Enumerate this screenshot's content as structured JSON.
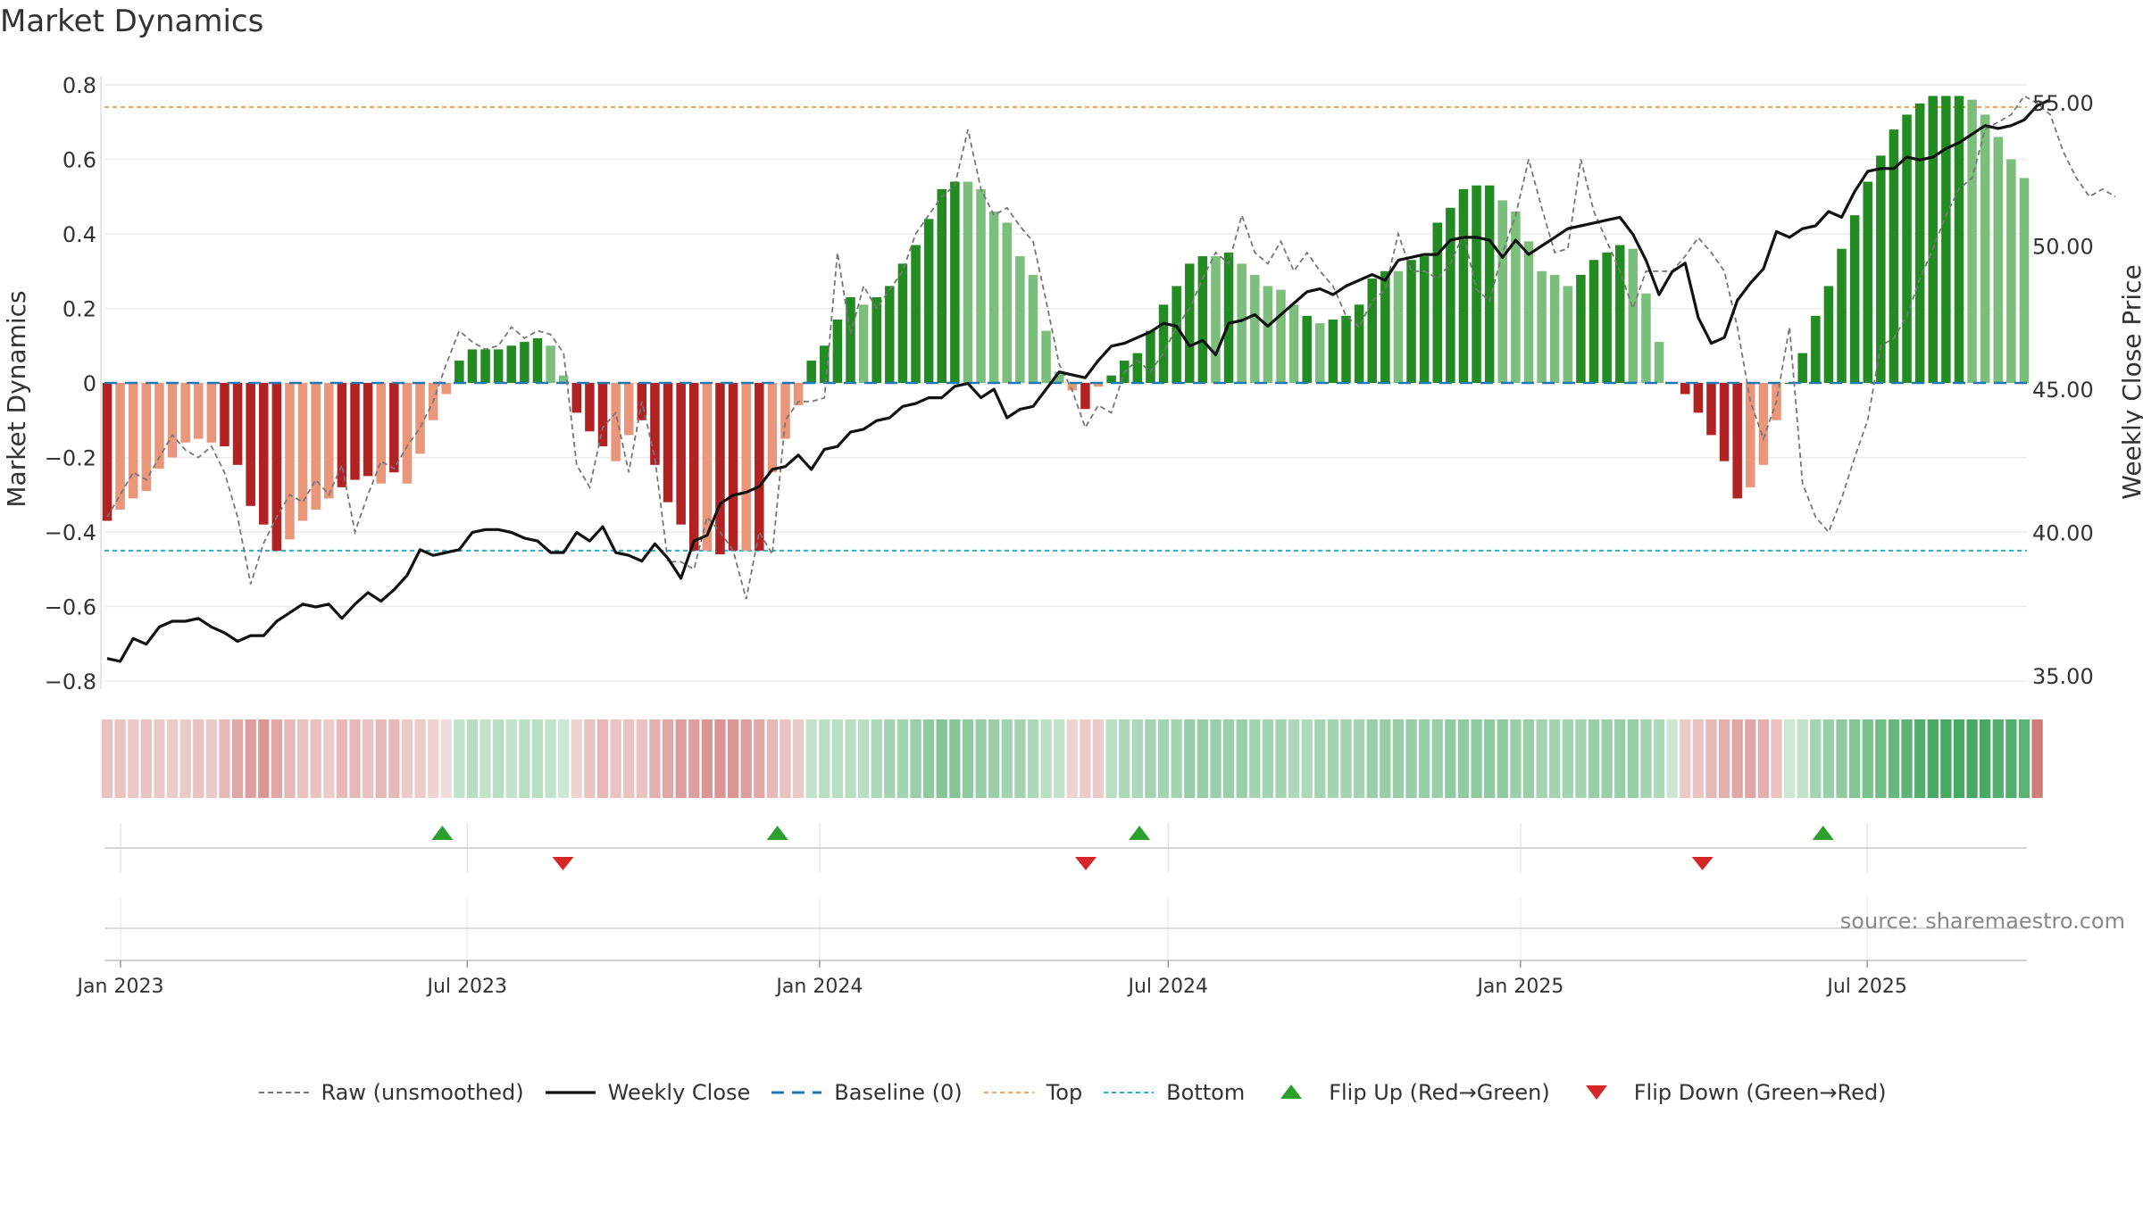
{
  "title": "Market Dynamics",
  "source": "source: sharemaestro.com",
  "chart_data": {
    "type": "bar",
    "title": "Market Dynamics",
    "ylabel": "Market Dynamics",
    "y2label": "Weekly Close Price",
    "ylim": [
      -0.8,
      0.8
    ],
    "y2lim": [
      35,
      55
    ],
    "yticks": [
      "0.8",
      "0.6",
      "0.4",
      "0.2",
      "0",
      "−0.2",
      "−0.4",
      "−0.6",
      "−0.8"
    ],
    "y2ticks": [
      "55.00",
      "50.00",
      "45.00",
      "40.00",
      "35.00"
    ],
    "xticks": [
      {
        "date": "2023-01-01",
        "label": "Jan 2023"
      },
      {
        "date": "2023-07-01",
        "label": "Jul 2023"
      },
      {
        "date": "2024-01-01",
        "label": "Jan 2024"
      },
      {
        "date": "2024-07-01",
        "label": "Jul 2024"
      },
      {
        "date": "2025-01-01",
        "label": "Jan 2025"
      },
      {
        "date": "2025-07-01",
        "label": "Jul 2025"
      }
    ],
    "x_start": "2022-12-25",
    "x_end": "2025-09-21",
    "top_level": 0.74,
    "bottom_level": -0.45,
    "baseline": 0,
    "grid": true,
    "legend_position": "bottom-center",
    "colors": {
      "strong_green": "#228B22",
      "light_green": "#7CBF7C",
      "strong_red": "#B22222",
      "light_red": "#E9967A",
      "raw": "#777777",
      "close": "#111111",
      "baseline": "#1F77B4",
      "top": "#F4A460",
      "bottom": "#20B2CC",
      "flip_up": "#2CA02C",
      "flip_down": "#D62728"
    },
    "series": [
      {
        "name": "Raw (unsmoothed)",
        "values": [
          -0.36,
          -0.3,
          -0.24,
          -0.26,
          -0.2,
          -0.14,
          -0.18,
          -0.2,
          -0.17,
          -0.24,
          -0.36,
          -0.54,
          -0.43,
          -0.36,
          -0.3,
          -0.32,
          -0.26,
          -0.3,
          -0.22,
          -0.4,
          -0.3,
          -0.21,
          -0.23,
          -0.17,
          -0.12,
          -0.05,
          0.05,
          0.14,
          0.11,
          0.09,
          0.1,
          0.15,
          0.12,
          0.14,
          0.13,
          0.08,
          -0.22,
          -0.28,
          -0.12,
          -0.08,
          -0.24,
          -0.05,
          -0.2,
          -0.48,
          -0.48,
          -0.5,
          -0.36,
          -0.4,
          -0.45,
          -0.58,
          -0.4,
          -0.46,
          -0.1,
          -0.05,
          -0.05,
          -0.04,
          0.35,
          0.13,
          0.26,
          0.2,
          0.25,
          0.3,
          0.4,
          0.45,
          0.5,
          0.53,
          0.68,
          0.52,
          0.45,
          0.47,
          0.42,
          0.38,
          0.22,
          0.05,
          -0.02,
          -0.12,
          -0.06,
          -0.08,
          0.03,
          0.06,
          0.03,
          0.08,
          0.15,
          0.2,
          0.28,
          0.35,
          0.32,
          0.45,
          0.35,
          0.32,
          0.38,
          0.3,
          0.35,
          0.3,
          0.26,
          0.18,
          0.15,
          0.22,
          0.25,
          0.4,
          0.3,
          0.3,
          0.28,
          0.32,
          0.4,
          0.25,
          0.22,
          0.35,
          0.45,
          0.6,
          0.47,
          0.35,
          0.36,
          0.6,
          0.46,
          0.38,
          0.3,
          0.2,
          0.3,
          0.3,
          0.3,
          0.34,
          0.39,
          0.35,
          0.3,
          0.15,
          -0.05,
          -0.15,
          -0.05,
          0.15,
          -0.27,
          -0.36,
          -0.4,
          -0.31,
          -0.2,
          -0.1,
          0.1,
          0.12,
          0.18,
          0.28,
          0.36,
          0.45,
          0.52,
          0.55,
          0.68,
          0.7,
          0.72,
          0.77,
          0.75,
          0.72,
          0.62,
          0.55,
          0.5,
          0.52,
          0.5
        ]
      },
      {
        "name": "Weekly Close",
        "values": [
          35.6,
          35.5,
          36.3,
          36.1,
          36.7,
          36.9,
          36.9,
          37.0,
          36.7,
          36.5,
          36.2,
          36.4,
          36.4,
          36.9,
          37.2,
          37.5,
          37.4,
          37.5,
          37.0,
          37.5,
          37.9,
          37.6,
          38.0,
          38.5,
          39.4,
          39.2,
          39.3,
          39.4,
          40.0,
          40.1,
          40.1,
          40.0,
          39.8,
          39.7,
          39.3,
          39.3,
          40.0,
          39.7,
          40.2,
          39.3,
          39.2,
          39.0,
          39.6,
          39.1,
          38.4,
          39.7,
          39.9,
          41.0,
          41.3,
          41.4,
          41.6,
          42.2,
          42.3,
          42.7,
          42.2,
          42.9,
          43.0,
          43.5,
          43.6,
          43.9,
          44.0,
          44.4,
          44.5,
          44.7,
          44.7,
          45.1,
          45.2,
          44.7,
          45.0,
          44.0,
          44.3,
          44.4,
          45.0,
          45.6,
          45.5,
          45.4,
          46.0,
          46.5,
          46.6,
          46.8,
          47.0,
          47.3,
          47.2,
          46.5,
          46.7,
          46.2,
          47.3,
          47.4,
          47.6,
          47.2,
          47.6,
          48.0,
          48.4,
          48.5,
          48.3,
          48.6,
          48.8,
          49.0,
          48.8,
          49.5,
          49.6,
          49.7,
          49.7,
          50.2,
          50.3,
          50.3,
          50.2,
          49.6,
          50.2,
          49.7,
          50.0,
          50.3,
          50.6,
          50.7,
          50.8,
          50.9,
          51.0,
          50.4,
          49.5,
          48.3,
          49.1,
          49.4,
          47.5,
          46.6,
          46.8,
          48.1,
          48.7,
          49.2,
          50.5,
          50.3,
          50.6,
          50.7,
          51.2,
          51.0,
          51.9,
          52.6,
          52.7,
          52.7,
          53.1,
          53.0,
          53.1,
          53.4,
          53.6,
          53.9,
          54.2,
          54.1,
          54.2,
          54.4,
          54.9,
          55.1
        ]
      }
    ],
    "bars": [
      -0.37,
      -0.34,
      -0.31,
      -0.29,
      -0.23,
      -0.2,
      -0.16,
      -0.15,
      -0.16,
      -0.17,
      -0.22,
      -0.33,
      -0.38,
      -0.45,
      -0.42,
      -0.37,
      -0.34,
      -0.31,
      -0.28,
      -0.26,
      -0.25,
      -0.27,
      -0.24,
      -0.27,
      -0.19,
      -0.1,
      -0.03,
      0.06,
      0.09,
      0.09,
      0.09,
      0.1,
      0.11,
      0.12,
      0.1,
      0.02,
      -0.08,
      -0.13,
      -0.17,
      -0.21,
      -0.14,
      -0.1,
      -0.22,
      -0.32,
      -0.38,
      -0.45,
      -0.45,
      -0.46,
      -0.45,
      -0.45,
      -0.45,
      -0.24,
      -0.15,
      -0.06,
      0.06,
      0.1,
      0.17,
      0.23,
      0.21,
      0.23,
      0.26,
      0.32,
      0.37,
      0.44,
      0.52,
      0.54,
      0.54,
      0.52,
      0.46,
      0.43,
      0.34,
      0.29,
      0.14,
      0.03,
      -0.02,
      -0.07,
      -0.01,
      0.02,
      0.06,
      0.08,
      0.14,
      0.21,
      0.26,
      0.32,
      0.34,
      0.34,
      0.35,
      0.32,
      0.29,
      0.26,
      0.25,
      0.21,
      0.18,
      0.16,
      0.17,
      0.18,
      0.21,
      0.28,
      0.3,
      0.3,
      0.33,
      0.34,
      0.43,
      0.47,
      0.52,
      0.53,
      0.53,
      0.49,
      0.46,
      0.38,
      0.3,
      0.29,
      0.26,
      0.29,
      0.33,
      0.35,
      0.37,
      0.36,
      0.24,
      0.11,
      0,
      -0.03,
      -0.08,
      -0.14,
      -0.21,
      -0.31,
      -0.28,
      -0.22,
      -0.1,
      0,
      0.08,
      0.18,
      0.26,
      0.36,
      0.45,
      0.54,
      0.61,
      0.68,
      0.72,
      0.75,
      0.77,
      0.77,
      0.77,
      0.76,
      0.72,
      0.66,
      0.6,
      0.55
    ],
    "bar_colors": [
      "#B22222",
      "#E9967A",
      "#E9967A",
      "#E9967A",
      "#E9967A",
      "#E9967A",
      "#E9967A",
      "#E9967A",
      "#E9967A",
      "#B22222",
      "#B22222",
      "#B22222",
      "#B22222",
      "#B22222",
      "#E9967A",
      "#E9967A",
      "#E9967A",
      "#E9967A",
      "#B22222",
      "#B22222",
      "#B22222",
      "#E9967A",
      "#B22222",
      "#E9967A",
      "#E9967A",
      "#E9967A",
      "#E9967A",
      "#228B22",
      "#228B22",
      "#228B22",
      "#228B22",
      "#228B22",
      "#228B22",
      "#228B22",
      "#7CBF7C",
      "#7CBF7C",
      "#B22222",
      "#B22222",
      "#B22222",
      "#E9967A",
      "#E9967A",
      "#B22222",
      "#B22222",
      "#B22222",
      "#B22222",
      "#B22222",
      "#E9967A",
      "#B22222",
      "#B22222",
      "#E9967A",
      "#B22222",
      "#E9967A",
      "#E9967A",
      "#E9967A",
      "#228B22",
      "#228B22",
      "#228B22",
      "#228B22",
      "#7CBF7C",
      "#228B22",
      "#228B22",
      "#228B22",
      "#228B22",
      "#228B22",
      "#228B22",
      "#228B22",
      "#7CBF7C",
      "#7CBF7C",
      "#7CBF7C",
      "#7CBF7C",
      "#7CBF7C",
      "#7CBF7C",
      "#7CBF7C",
      "#7CBF7C",
      "#E9967A",
      "#B22222",
      "#E9967A",
      "#228B22",
      "#228B22",
      "#228B22",
      "#228B22",
      "#228B22",
      "#228B22",
      "#228B22",
      "#228B22",
      "#7CBF7C",
      "#228B22",
      "#7CBF7C",
      "#7CBF7C",
      "#7CBF7C",
      "#7CBF7C",
      "#7CBF7C",
      "#228B22",
      "#7CBF7C",
      "#228B22",
      "#228B22",
      "#228B22",
      "#228B22",
      "#228B22",
      "#7CBF7C",
      "#228B22",
      "#228B22",
      "#228B22",
      "#228B22",
      "#228B22",
      "#228B22",
      "#228B22",
      "#7CBF7C",
      "#7CBF7C",
      "#7CBF7C",
      "#7CBF7C",
      "#7CBF7C",
      "#7CBF7C",
      "#228B22",
      "#228B22",
      "#228B22",
      "#228B22",
      "#7CBF7C",
      "#7CBF7C",
      "#7CBF7C",
      "#E9967A",
      "#B22222",
      "#B22222",
      "#B22222",
      "#B22222",
      "#B22222",
      "#E9967A",
      "#E9967A",
      "#E9967A",
      "#228B22",
      "#228B22",
      "#228B22",
      "#228B22",
      "#228B22",
      "#228B22",
      "#228B22",
      "#228B22",
      "#228B22",
      "#228B22",
      "#228B22",
      "#228B22",
      "#228B22",
      "#228B22",
      "#7CBF7C",
      "#7CBF7C",
      "#7CBF7C",
      "#7CBF7C",
      "#7CBF7C",
      "#7CBF7C"
    ],
    "strength_strip": [
      0.35,
      0.35,
      0.3,
      0.35,
      0.3,
      0.3,
      0.3,
      0.35,
      0.3,
      0.4,
      0.5,
      0.55,
      0.6,
      0.5,
      0.4,
      0.35,
      0.35,
      0.3,
      0.4,
      0.4,
      0.35,
      0.4,
      0.4,
      0.3,
      0.3,
      0.25,
      0.2,
      0.3,
      0.35,
      0.3,
      0.35,
      0.3,
      0.35,
      0.35,
      0.3,
      0.25,
      0.25,
      0.35,
      0.4,
      0.35,
      0.35,
      0.35,
      0.45,
      0.5,
      0.55,
      0.55,
      0.6,
      0.6,
      0.6,
      0.55,
      0.5,
      0.4,
      0.35,
      0.3,
      0.3,
      0.35,
      0.35,
      0.35,
      0.35,
      0.4,
      0.45,
      0.45,
      0.5,
      0.55,
      0.6,
      0.6,
      0.55,
      0.5,
      0.5,
      0.45,
      0.45,
      0.4,
      0.35,
      0.3,
      0.25,
      0.3,
      0.3,
      0.35,
      0.4,
      0.4,
      0.45,
      0.45,
      0.45,
      0.5,
      0.5,
      0.5,
      0.5,
      0.5,
      0.45,
      0.45,
      0.45,
      0.4,
      0.4,
      0.45,
      0.45,
      0.45,
      0.45,
      0.5,
      0.5,
      0.5,
      0.5,
      0.5,
      0.5,
      0.55,
      0.55,
      0.55,
      0.55,
      0.55,
      0.5,
      0.5,
      0.45,
      0.45,
      0.45,
      0.45,
      0.5,
      0.5,
      0.5,
      0.5,
      0.45,
      0.4,
      0.25,
      0.3,
      0.35,
      0.4,
      0.45,
      0.5,
      0.5,
      0.45,
      0.35,
      0.25,
      0.3,
      0.45,
      0.5,
      0.55,
      0.6,
      0.65,
      0.7,
      0.75,
      0.8,
      0.85,
      0.9,
      0.9,
      0.9,
      0.9,
      0.9,
      0.85,
      0.85,
      0.8,
      0.75
    ],
    "flips": [
      {
        "type": "up",
        "date": "2023-06-18"
      },
      {
        "type": "down",
        "date": "2023-08-20"
      },
      {
        "type": "up",
        "date": "2023-12-10"
      },
      {
        "type": "down",
        "date": "2024-05-19"
      },
      {
        "type": "up",
        "date": "2024-06-16"
      },
      {
        "type": "down",
        "date": "2025-04-06"
      },
      {
        "type": "up",
        "date": "2025-06-08"
      }
    ]
  },
  "legend": [
    {
      "label": "Raw (unsmoothed)",
      "kind": "dash-gray"
    },
    {
      "label": "Weekly Close",
      "kind": "solid-black"
    },
    {
      "label": "Baseline (0)",
      "kind": "dash-blue"
    },
    {
      "label": "Top",
      "kind": "dot-orange"
    },
    {
      "label": "Bottom",
      "kind": "dot-cyan"
    },
    {
      "label": "Flip Up (Red→Green)",
      "kind": "triangle-up"
    },
    {
      "label": "Flip Down (Green→Red)",
      "kind": "triangle-down"
    }
  ]
}
